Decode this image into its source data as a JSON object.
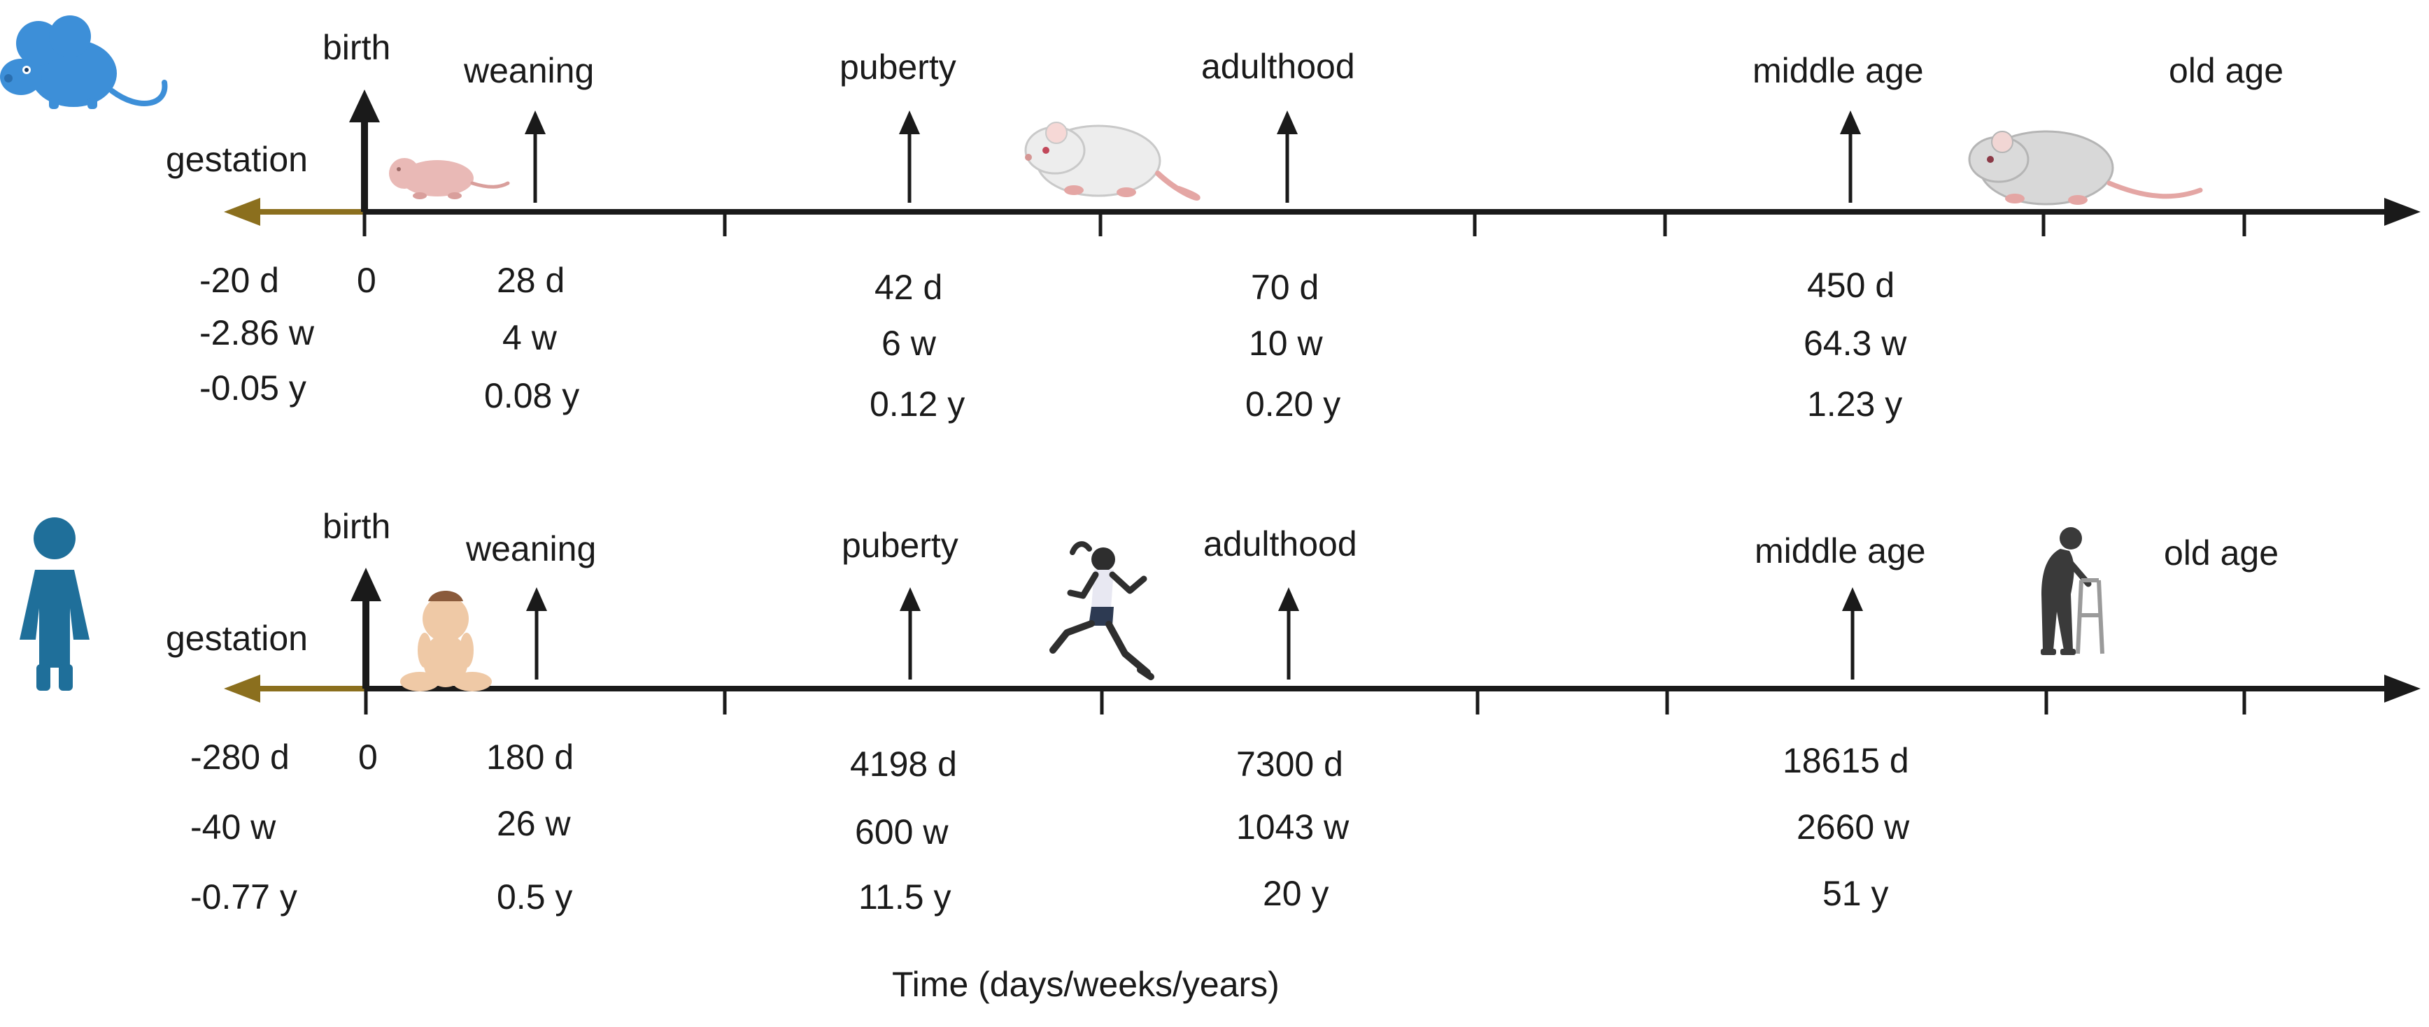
{
  "colors": {
    "axis": "#1a1a1a",
    "gestation_arrow": "#8B6F1E",
    "mouse_icon": "#3D8FD8",
    "woman_icon": "#1F6F9A",
    "pup_skin": "#E9B9B6",
    "rat_fur": "#EDEDED",
    "rat_fur_old": "#D8D8D8",
    "baby_skin": "#EFC9A6",
    "runner_skin": "#2E2E2E",
    "runner_top": "#E8E8F2",
    "runner_shorts": "#2D3A52",
    "elder": "#3A3A3A"
  },
  "rows": [
    {
      "species_icon": "mouse-icon",
      "labels": {
        "gestation": "gestation",
        "birth": "birth",
        "weaning": "weaning",
        "puberty": "puberty",
        "adulthood": "adulthood",
        "middle_age": "middle age",
        "old_age": "old age"
      },
      "values": {
        "gestation": [
          "-20 d",
          "-2.86 w",
          "-0.05 y"
        ],
        "birth": [
          "0"
        ],
        "weaning": [
          "28 d",
          "4 w",
          "0.08 y"
        ],
        "puberty": [
          "42 d",
          "6 w",
          "0.12 y"
        ],
        "adulthood": [
          "70 d",
          "10 w",
          "0.20 y"
        ],
        "middle_age": [
          "450 d",
          "64.3 w",
          "1.23 y"
        ]
      },
      "illustrations": [
        "pup-icon",
        "adult-rat-icon",
        "old-rat-icon"
      ]
    },
    {
      "species_icon": "woman-icon",
      "labels": {
        "gestation": "gestation",
        "birth": "birth",
        "weaning": "weaning",
        "puberty": "puberty",
        "adulthood": "adulthood",
        "middle_age": "middle age",
        "old_age": "old age"
      },
      "values": {
        "gestation": [
          "-280 d",
          "-40 w",
          "-0.77 y"
        ],
        "birth": [
          "0"
        ],
        "weaning": [
          "180 d",
          "26 w",
          "0.5 y"
        ],
        "puberty": [
          "4198 d",
          "600 w",
          "11.5 y"
        ],
        "adulthood": [
          "7300 d",
          "1043 w",
          "20 y"
        ],
        "middle_age": [
          "18615  d",
          "2660 w",
          "51 y"
        ]
      },
      "illustrations": [
        "baby-icon",
        "runner-icon",
        "elder-with-walker-icon"
      ]
    }
  ],
  "axis_title": "Time (days/weeks/years)"
}
